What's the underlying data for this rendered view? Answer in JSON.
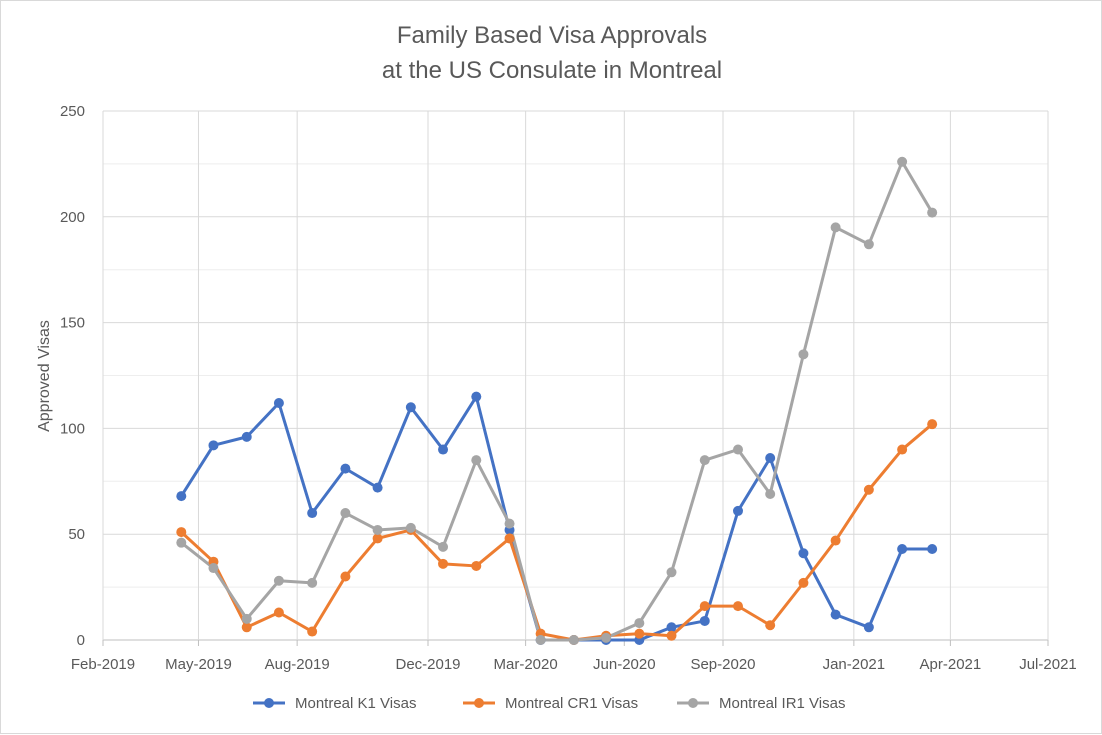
{
  "chart_data": {
    "type": "line",
    "title_lines": [
      "Family Based Visa Approvals",
      "at the US Consulate in Montreal"
    ],
    "xlabel": "",
    "ylabel": "Approved Visas",
    "ylim": [
      0,
      250
    ],
    "yticks": [
      0,
      50,
      100,
      150,
      200,
      250
    ],
    "xlim": [
      "2019-02-01",
      "2021-07-01"
    ],
    "xticks": [
      {
        "date": "2019-02-01",
        "label": "Feb-2019"
      },
      {
        "date": "2019-05-01",
        "label": "May-2019"
      },
      {
        "date": "2019-08-01",
        "label": "Aug-2019"
      },
      {
        "date": "2019-12-01",
        "label": "Dec-2019"
      },
      {
        "date": "2020-03-01",
        "label": "Mar-2020"
      },
      {
        "date": "2020-06-01",
        "label": "Jun-2020"
      },
      {
        "date": "2020-09-01",
        "label": "Sep-2020"
      },
      {
        "date": "2021-01-01",
        "label": "Jan-2021"
      },
      {
        "date": "2021-04-01",
        "label": "Apr-2021"
      },
      {
        "date": "2021-07-01",
        "label": "Jul-2021"
      }
    ],
    "grid": true,
    "legend_position": "bottom",
    "x": [
      "2019-04-15",
      "2019-05-15",
      "2019-06-15",
      "2019-07-15",
      "2019-08-15",
      "2019-09-15",
      "2019-10-15",
      "2019-11-15",
      "2019-12-15",
      "2020-01-15",
      "2020-02-15",
      "2020-03-15",
      "2020-04-15",
      "2020-05-15",
      "2020-06-15",
      "2020-07-15",
      "2020-08-15",
      "2020-09-15",
      "2020-10-15",
      "2020-11-15",
      "2020-12-15",
      "2021-01-15",
      "2021-02-15",
      "2021-03-15"
    ],
    "series": [
      {
        "name": "Montreal K1 Visas",
        "color": "#4472C4",
        "values": [
          68,
          92,
          96,
          112,
          60,
          81,
          72,
          110,
          90,
          115,
          52,
          0,
          0,
          0,
          0,
          6,
          9,
          61,
          86,
          41,
          12,
          6,
          43,
          43
        ]
      },
      {
        "name": "Montreal CR1 Visas",
        "color": "#ED7D31",
        "values": [
          51,
          37,
          6,
          13,
          4,
          30,
          48,
          52,
          36,
          35,
          48,
          3,
          0,
          2,
          3,
          2,
          16,
          16,
          7,
          27,
          47,
          71,
          90,
          102
        ]
      },
      {
        "name": "Montreal IR1 Visas",
        "color": "#A5A5A5",
        "values": [
          46,
          34,
          10,
          28,
          27,
          60,
          52,
          53,
          44,
          85,
          55,
          0,
          0,
          1,
          8,
          32,
          85,
          90,
          69,
          135,
          195,
          187,
          226,
          202
        ]
      }
    ]
  }
}
